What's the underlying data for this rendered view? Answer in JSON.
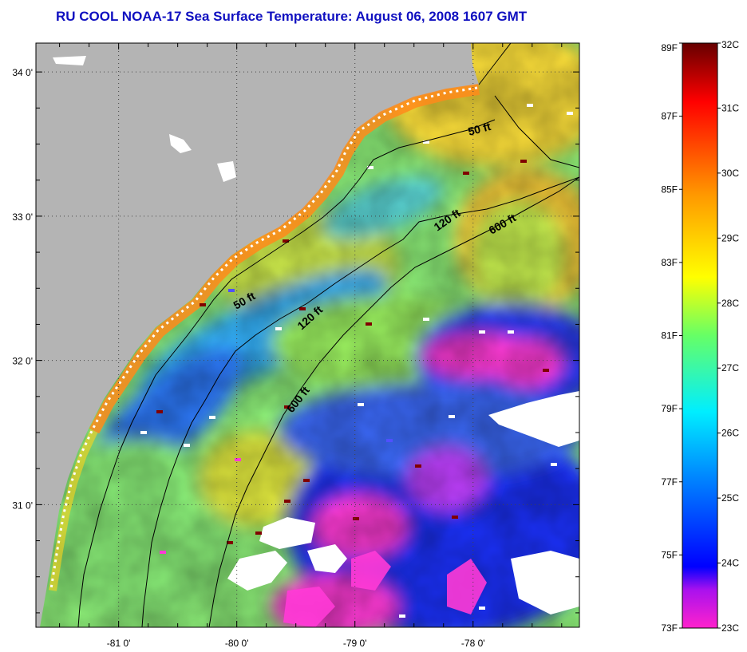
{
  "title": "RU COOL  NOAA-17  Sea Surface Temperature:  August 06, 2008 1607 GMT",
  "map": {
    "lat_ticks": [
      {
        "value": 34,
        "label": "34 0'"
      },
      {
        "value": 33,
        "label": "33 0'"
      },
      {
        "value": 32,
        "label": "32 0'"
      },
      {
        "value": 31,
        "label": "31 0'"
      }
    ],
    "lon_ticks": [
      {
        "value": -81,
        "label": "-81 0'"
      },
      {
        "value": -80,
        "label": "-80 0'"
      },
      {
        "value": -79,
        "label": "-79 0'"
      },
      {
        "value": -78,
        "label": "-78 0'"
      }
    ],
    "lat_range": [
      30.15,
      34.2
    ],
    "lon_range": [
      -81.7,
      -77.1
    ],
    "depth_labels": [
      "50 ft",
      "50 ft",
      "120 ft",
      "120 ft",
      "600 ft",
      "600 ft"
    ]
  },
  "colorbar": {
    "fahrenheit_labels": [
      "89F",
      "87F",
      "85F",
      "83F",
      "81F",
      "79F",
      "77F",
      "75F",
      "73F"
    ],
    "celsius_labels": [
      "32C",
      "31C",
      "30C",
      "29C",
      "28C",
      "27C",
      "26C",
      "25C",
      "24C",
      "23C"
    ],
    "colors": [
      "#ff22cc",
      "#8800ff",
      "#0000ff",
      "#0088ff",
      "#00eeff",
      "#66ff66",
      "#ffff00",
      "#ff9900",
      "#ff0000",
      "#660000"
    ]
  },
  "colors": {
    "land": "#b4b4b4",
    "title": "#1010c0",
    "cloud": "#ffffff"
  }
}
